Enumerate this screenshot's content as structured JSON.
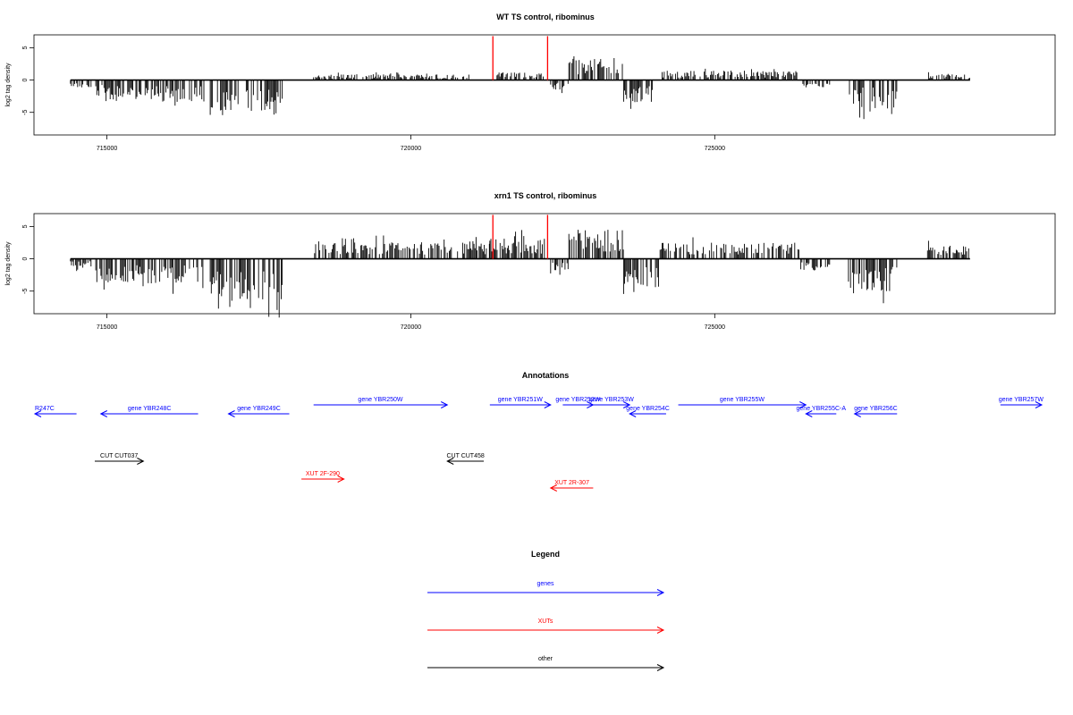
{
  "colors": {
    "gene": "#0000ff",
    "xut": "#ff0000",
    "other": "#000000",
    "marker": "#ff0000"
  },
  "chart_data": [
    {
      "type": "bar",
      "title": "WT TS control, ribominus",
      "ylabel": "log2 tag density",
      "xlim": [
        713800,
        730600
      ],
      "ylim": [
        -8.5,
        7
      ],
      "xticks": [
        715000,
        720000,
        725000
      ],
      "yticks": [
        -5,
        0,
        5
      ],
      "coverage_extent": [
        714400,
        729200
      ],
      "grid": false,
      "marker_x": [
        721350,
        722250
      ],
      "marker_height": 6.8,
      "segments": [
        {
          "from": 714400,
          "to": 714750,
          "strand": "-",
          "level": 1.2
        },
        {
          "from": 714800,
          "to": 715800,
          "strand": "-",
          "level": 3.0
        },
        {
          "from": 715800,
          "to": 716600,
          "strand": "-",
          "level": 3.5
        },
        {
          "from": 716700,
          "to": 717900,
          "strand": "-",
          "level": 5.5
        },
        {
          "from": 718400,
          "to": 721000,
          "strand": "+",
          "level": 0.9
        },
        {
          "from": 721400,
          "to": 722200,
          "strand": "+",
          "level": 1.2
        },
        {
          "from": 722300,
          "to": 722600,
          "strand": "-",
          "level": 1.5
        },
        {
          "from": 722600,
          "to": 723500,
          "strand": "+",
          "level": 3.5
        },
        {
          "from": 723500,
          "to": 724000,
          "strand": "-",
          "level": 3.5
        },
        {
          "from": 724100,
          "to": 726400,
          "strand": "+",
          "level": 1.5
        },
        {
          "from": 726400,
          "to": 726900,
          "strand": "-",
          "level": 1.2
        },
        {
          "from": 727200,
          "to": 728000,
          "strand": "-",
          "level": 4.5
        },
        {
          "from": 728500,
          "to": 729200,
          "strand": "+",
          "level": 1.0
        }
      ]
    },
    {
      "type": "bar",
      "title": "xrn1 TS control, ribominus",
      "ylabel": "log2 tag density",
      "xlim": [
        713800,
        730600
      ],
      "ylim": [
        -8.5,
        7
      ],
      "xticks": [
        715000,
        720000,
        725000
      ],
      "yticks": [
        -5,
        0,
        5
      ],
      "coverage_extent": [
        714400,
        729200
      ],
      "grid": false,
      "marker_x": [
        721350,
        722250
      ],
      "marker_height": 6.8,
      "segments": [
        {
          "from": 714400,
          "to": 714750,
          "strand": "-",
          "level": 1.5
        },
        {
          "from": 714800,
          "to": 715800,
          "strand": "-",
          "level": 3.8
        },
        {
          "from": 715800,
          "to": 716600,
          "strand": "-",
          "level": 4.0
        },
        {
          "from": 716700,
          "to": 717900,
          "strand": "-",
          "level": 6.5
        },
        {
          "from": 718400,
          "to": 721300,
          "strand": "+",
          "level": 2.6
        },
        {
          "from": 721300,
          "to": 722200,
          "strand": "+",
          "level": 3.2
        },
        {
          "from": 722300,
          "to": 722600,
          "strand": "-",
          "level": 1.8
        },
        {
          "from": 722600,
          "to": 723500,
          "strand": "+",
          "level": 4.5
        },
        {
          "from": 723500,
          "to": 724100,
          "strand": "-",
          "level": 4.5
        },
        {
          "from": 724100,
          "to": 726400,
          "strand": "+",
          "level": 2.5
        },
        {
          "from": 726400,
          "to": 726900,
          "strand": "-",
          "level": 1.8
        },
        {
          "from": 727200,
          "to": 728000,
          "strand": "-",
          "level": 5.0
        },
        {
          "from": 728500,
          "to": 729200,
          "strand": "+",
          "level": 2.0
        }
      ]
    }
  ],
  "annotations": {
    "title": "Annotations",
    "features": [
      {
        "label": "R247C",
        "kind": "gene",
        "strand": "-",
        "start": 713800,
        "end": 714500,
        "row": 1
      },
      {
        "label": "gene YBR248C",
        "kind": "gene",
        "strand": "-",
        "start": 714900,
        "end": 716500,
        "row": 1
      },
      {
        "label": "gene YBR249C",
        "kind": "gene",
        "strand": "-",
        "start": 717000,
        "end": 718000,
        "row": 1
      },
      {
        "label": "gene YBR250W",
        "kind": "gene",
        "strand": "+",
        "start": 718400,
        "end": 720600,
        "row": 0
      },
      {
        "label": "gene YBR251W",
        "kind": "gene",
        "strand": "+",
        "start": 721300,
        "end": 722300,
        "row": 0
      },
      {
        "label": "gene YBR252W",
        "kind": "gene",
        "strand": "+",
        "start": 722500,
        "end": 723000,
        "row": 0
      },
      {
        "label": "gene YBR253W",
        "kind": "gene",
        "strand": "+",
        "start": 723000,
        "end": 723600,
        "row": 0
      },
      {
        "label": "gene YBR254C",
        "kind": "gene",
        "strand": "-",
        "start": 723600,
        "end": 724200,
        "row": 1
      },
      {
        "label": "gene YBR255W",
        "kind": "gene",
        "strand": "+",
        "start": 724400,
        "end": 726500,
        "row": 0
      },
      {
        "label": "gene YBR255C-A",
        "kind": "gene",
        "strand": "-",
        "start": 726500,
        "end": 727000,
        "row": 1
      },
      {
        "label": "gene YBR256C",
        "kind": "gene",
        "strand": "-",
        "start": 727300,
        "end": 728000,
        "row": 1
      },
      {
        "label": "gene YBR257W",
        "kind": "gene",
        "strand": "+",
        "start": 729700,
        "end": 730600,
        "row": 0
      },
      {
        "label": "CUT CUT037",
        "kind": "other",
        "strand": "+",
        "start": 714800,
        "end": 715600,
        "row": 2
      },
      {
        "label": "CUT CUT458",
        "kind": "other",
        "strand": "-",
        "start": 720600,
        "end": 721200,
        "row": 2
      },
      {
        "label": "XUT 2F-290",
        "kind": "xut",
        "strand": "+",
        "start": 718200,
        "end": 718900,
        "row": 3
      },
      {
        "label": "XUT 2R-307",
        "kind": "xut",
        "strand": "-",
        "start": 722300,
        "end": 723000,
        "row": 4
      }
    ]
  },
  "legend": {
    "title": "Legend",
    "items": [
      {
        "label": "genes",
        "kind": "gene"
      },
      {
        "label": "XUTs",
        "kind": "xut"
      },
      {
        "label": "other",
        "kind": "other"
      }
    ]
  }
}
